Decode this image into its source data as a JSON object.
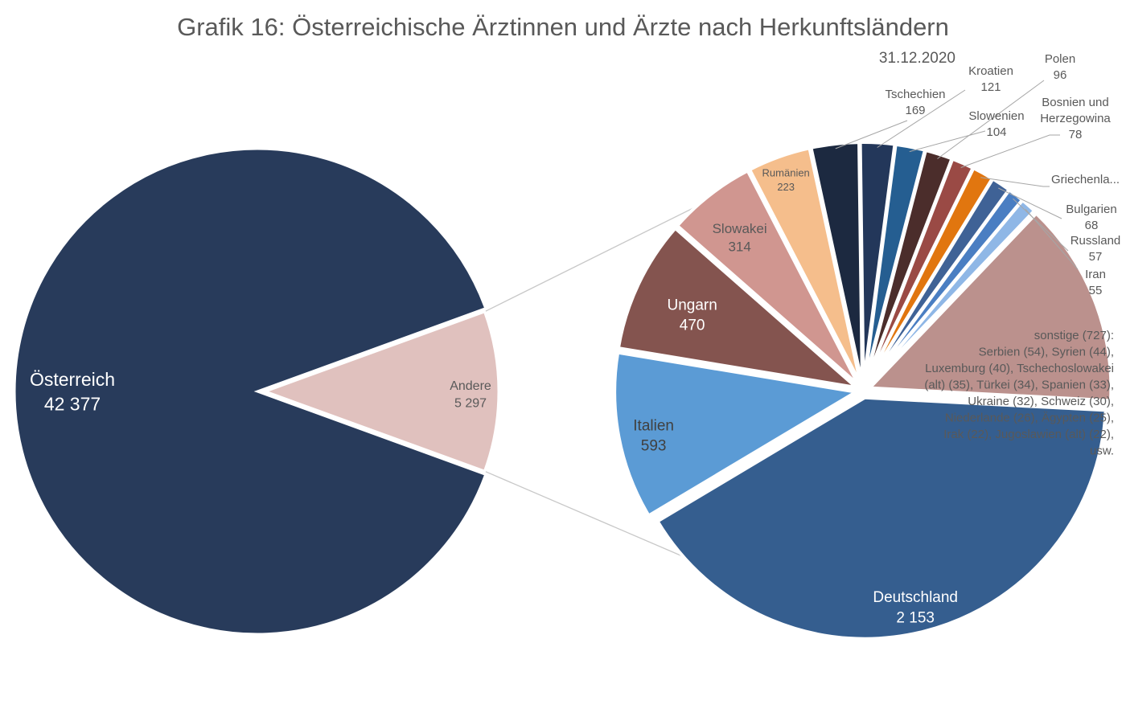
{
  "title": "Grafik 16: Österreichische Ärztinnen und Ärzte nach Herkunftsländern",
  "subtitle": "31.12.2020",
  "colors": {
    "oesterreich": "#283b5b",
    "andere": "#e0c1be",
    "deutschland": "#355e8f",
    "italien": "#5b9bd5",
    "ungarn": "#84544f",
    "slowakei": "#d09690",
    "rumaenien": "#f5be8c",
    "tschechien": "#1c2940",
    "kroatien": "#23375a",
    "slowenien": "#255e91",
    "polen": "#4b2d2b",
    "bosnien": "#9a4a45",
    "griechenland": "#e1760f",
    "bulgarien": "#3f6296",
    "russland": "#4a7ec2",
    "iran": "#8fb7e6",
    "sonstige": "#bb918d",
    "connector": "#c8c8c8",
    "leader": "#a6a6a6"
  },
  "chart_data": [
    {
      "type": "pie",
      "slices": [
        {
          "key": "oesterreich",
          "label": "Österreich",
          "value_label": "42 377",
          "value": 42377
        },
        {
          "key": "andere",
          "label": "Andere",
          "value_label": "5 297",
          "value": 5297
        }
      ]
    },
    {
      "type": "pie",
      "slices": [
        {
          "key": "deutschland",
          "label": "Deutschland",
          "value_label": "2 153",
          "value": 2153
        },
        {
          "key": "italien",
          "label": "Italien",
          "value_label": "593",
          "value": 593
        },
        {
          "key": "ungarn",
          "label": "Ungarn",
          "value_label": "470",
          "value": 470
        },
        {
          "key": "slowakei",
          "label": "Slowakei",
          "value_label": "314",
          "value": 314
        },
        {
          "key": "rumaenien",
          "label": "Rumänien",
          "value_label": "223",
          "value": 223
        },
        {
          "key": "tschechien",
          "label": "Tschechien",
          "value_label": "169",
          "value": 169
        },
        {
          "key": "kroatien",
          "label": "Kroatien",
          "value_label": "121",
          "value": 121
        },
        {
          "key": "slowenien",
          "label": "Slowenien",
          "value_label": "104",
          "value": 104
        },
        {
          "key": "polen",
          "label": "Polen",
          "value_label": "96",
          "value": 96
        },
        {
          "key": "bosnien",
          "label": "Bosnien und Herzegowina",
          "value_label": "78",
          "value": 78
        },
        {
          "key": "griechenland",
          "label": "Griechenla...",
          "value_label": "",
          "value": 75
        },
        {
          "key": "bulgarien",
          "label": "Bulgarien",
          "value_label": "68",
          "value": 68
        },
        {
          "key": "russland",
          "label": "Russland",
          "value_label": "57",
          "value": 57
        },
        {
          "key": "iran",
          "label": "Iran",
          "value_label": "55",
          "value": 55
        },
        {
          "key": "sonstige",
          "label": "sonstige (727):",
          "value_label": "",
          "value": 727,
          "details": [
            "Serbien (54), Syrien (44),",
            "Luxemburg (40), Tschechoslowakei",
            "(alt) (35), Türkei (34), Spanien (33),",
            "Ukraine (32), Schweiz (30),",
            "Niederlande (26), Ägypten (25),",
            "Irak (22), Jugoslawien (alt) (22),",
            "usw."
          ]
        }
      ]
    }
  ]
}
